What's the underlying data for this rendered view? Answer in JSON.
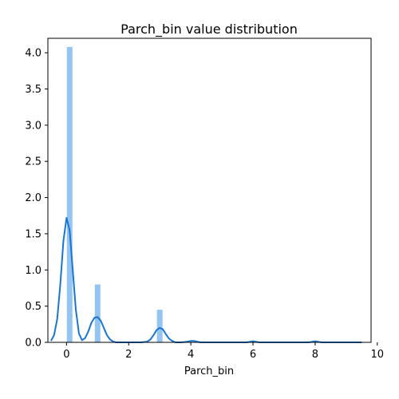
{
  "chart_data": {
    "type": "bar",
    "title": "Parch_bin value distribution",
    "xlabel": "Parch_bin",
    "ylabel": "",
    "xlim": [
      -0.6,
      9.8
    ],
    "ylim": [
      0,
      4.2
    ],
    "xticks": [
      0,
      2,
      4,
      6,
      8,
      10
    ],
    "yticks": [
      0.0,
      0.5,
      1.0,
      1.5,
      2.0,
      2.5,
      3.0,
      3.5,
      4.0
    ],
    "grid": false,
    "bar_color": "#94c4f1",
    "line_color": "#1976d2",
    "bars": [
      {
        "x": 0.1,
        "height": 4.08
      },
      {
        "x": 1.0,
        "height": 0.8
      },
      {
        "x": 3.0,
        "height": 0.45
      }
    ],
    "kde": {
      "x": [
        -0.5,
        -0.4,
        -0.3,
        -0.2,
        -0.1,
        0.0,
        0.1,
        0.2,
        0.3,
        0.4,
        0.5,
        0.6,
        0.7,
        0.8,
        0.9,
        1.0,
        1.1,
        1.2,
        1.3,
        1.4,
        1.5,
        1.6,
        2.0,
        2.4,
        2.6,
        2.7,
        2.8,
        2.9,
        3.0,
        3.1,
        3.2,
        3.3,
        3.4,
        3.5,
        3.7,
        3.9,
        4.0,
        4.1,
        4.3,
        5.0,
        5.8,
        6.0,
        6.2,
        7.0,
        7.8,
        8.0,
        8.2,
        9.0,
        9.5
      ],
      "y": [
        0.02,
        0.1,
        0.32,
        0.8,
        1.4,
        1.72,
        1.55,
        1.0,
        0.45,
        0.12,
        0.03,
        0.06,
        0.15,
        0.27,
        0.34,
        0.35,
        0.3,
        0.2,
        0.1,
        0.04,
        0.01,
        0.0,
        0.0,
        0.0,
        0.01,
        0.04,
        0.1,
        0.17,
        0.2,
        0.18,
        0.11,
        0.05,
        0.02,
        0.0,
        0.0,
        0.01,
        0.02,
        0.02,
        0.0,
        0.0,
        0.0,
        0.015,
        0.0,
        0.0,
        0.0,
        0.015,
        0.0,
        0.0,
        0.0
      ]
    }
  }
}
